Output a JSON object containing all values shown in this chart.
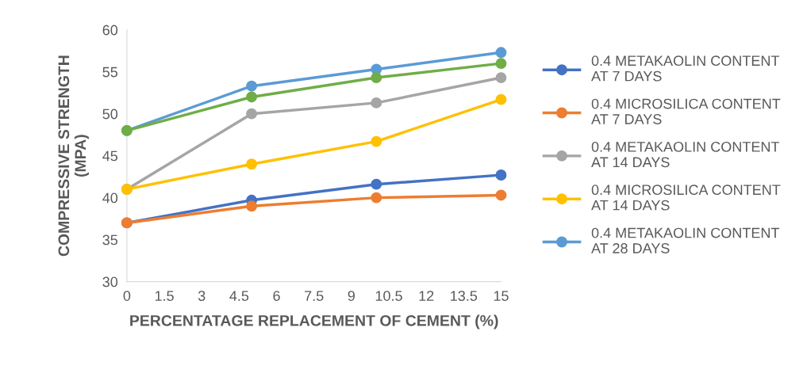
{
  "chart_data": {
    "type": "line",
    "xlabel": "PERCENTATAGE REPLACEMENT OF CEMENT (%)",
    "ylabel": "COMPRESSIVE STRENGTH\n(MPA)",
    "x": [
      0,
      5,
      10,
      15
    ],
    "series": [
      {
        "name": "0.4 METAKAOLIN CONTENT\nAT 7 DAYS",
        "color": "#4472c4",
        "values": [
          37,
          39.7,
          41.6,
          42.7
        ]
      },
      {
        "name": "0.4 MICROSILICA CONTENT\nAT 7 DAYS",
        "color": "#ed7d31",
        "values": [
          37,
          39.0,
          40.0,
          40.3
        ]
      },
      {
        "name": "0.4 METAKAOLIN CONTENT\nAT 14 DAYS",
        "color": "#a5a5a5",
        "values": [
          41,
          50.0,
          51.3,
          54.3
        ]
      },
      {
        "name": "0.4 MICROSILICA CONTENT\nAT 14 DAYS",
        "color": "#ffc000",
        "values": [
          41,
          44.0,
          46.7,
          51.7
        ]
      },
      {
        "name": "0.4 METAKAOLIN CONTENT\nAT 28 DAYS",
        "color": "#5b9bd5",
        "values": [
          48,
          53.3,
          55.3,
          57.3
        ]
      },
      {
        "color": "#70ad47",
        "values": [
          48,
          52.0,
          54.3,
          56.0
        ]
      }
    ],
    "xlim": [
      0,
      15
    ],
    "xticks": [
      0,
      1.5,
      3,
      4.5,
      6,
      7.5,
      9,
      10.5,
      12,
      13.5,
      15
    ],
    "ylim": [
      30,
      60
    ],
    "yticks": [
      30,
      35,
      40,
      45,
      50,
      55,
      60
    ],
    "grid": false,
    "legend": "right",
    "marker": "circle",
    "line_style": "solid"
  }
}
